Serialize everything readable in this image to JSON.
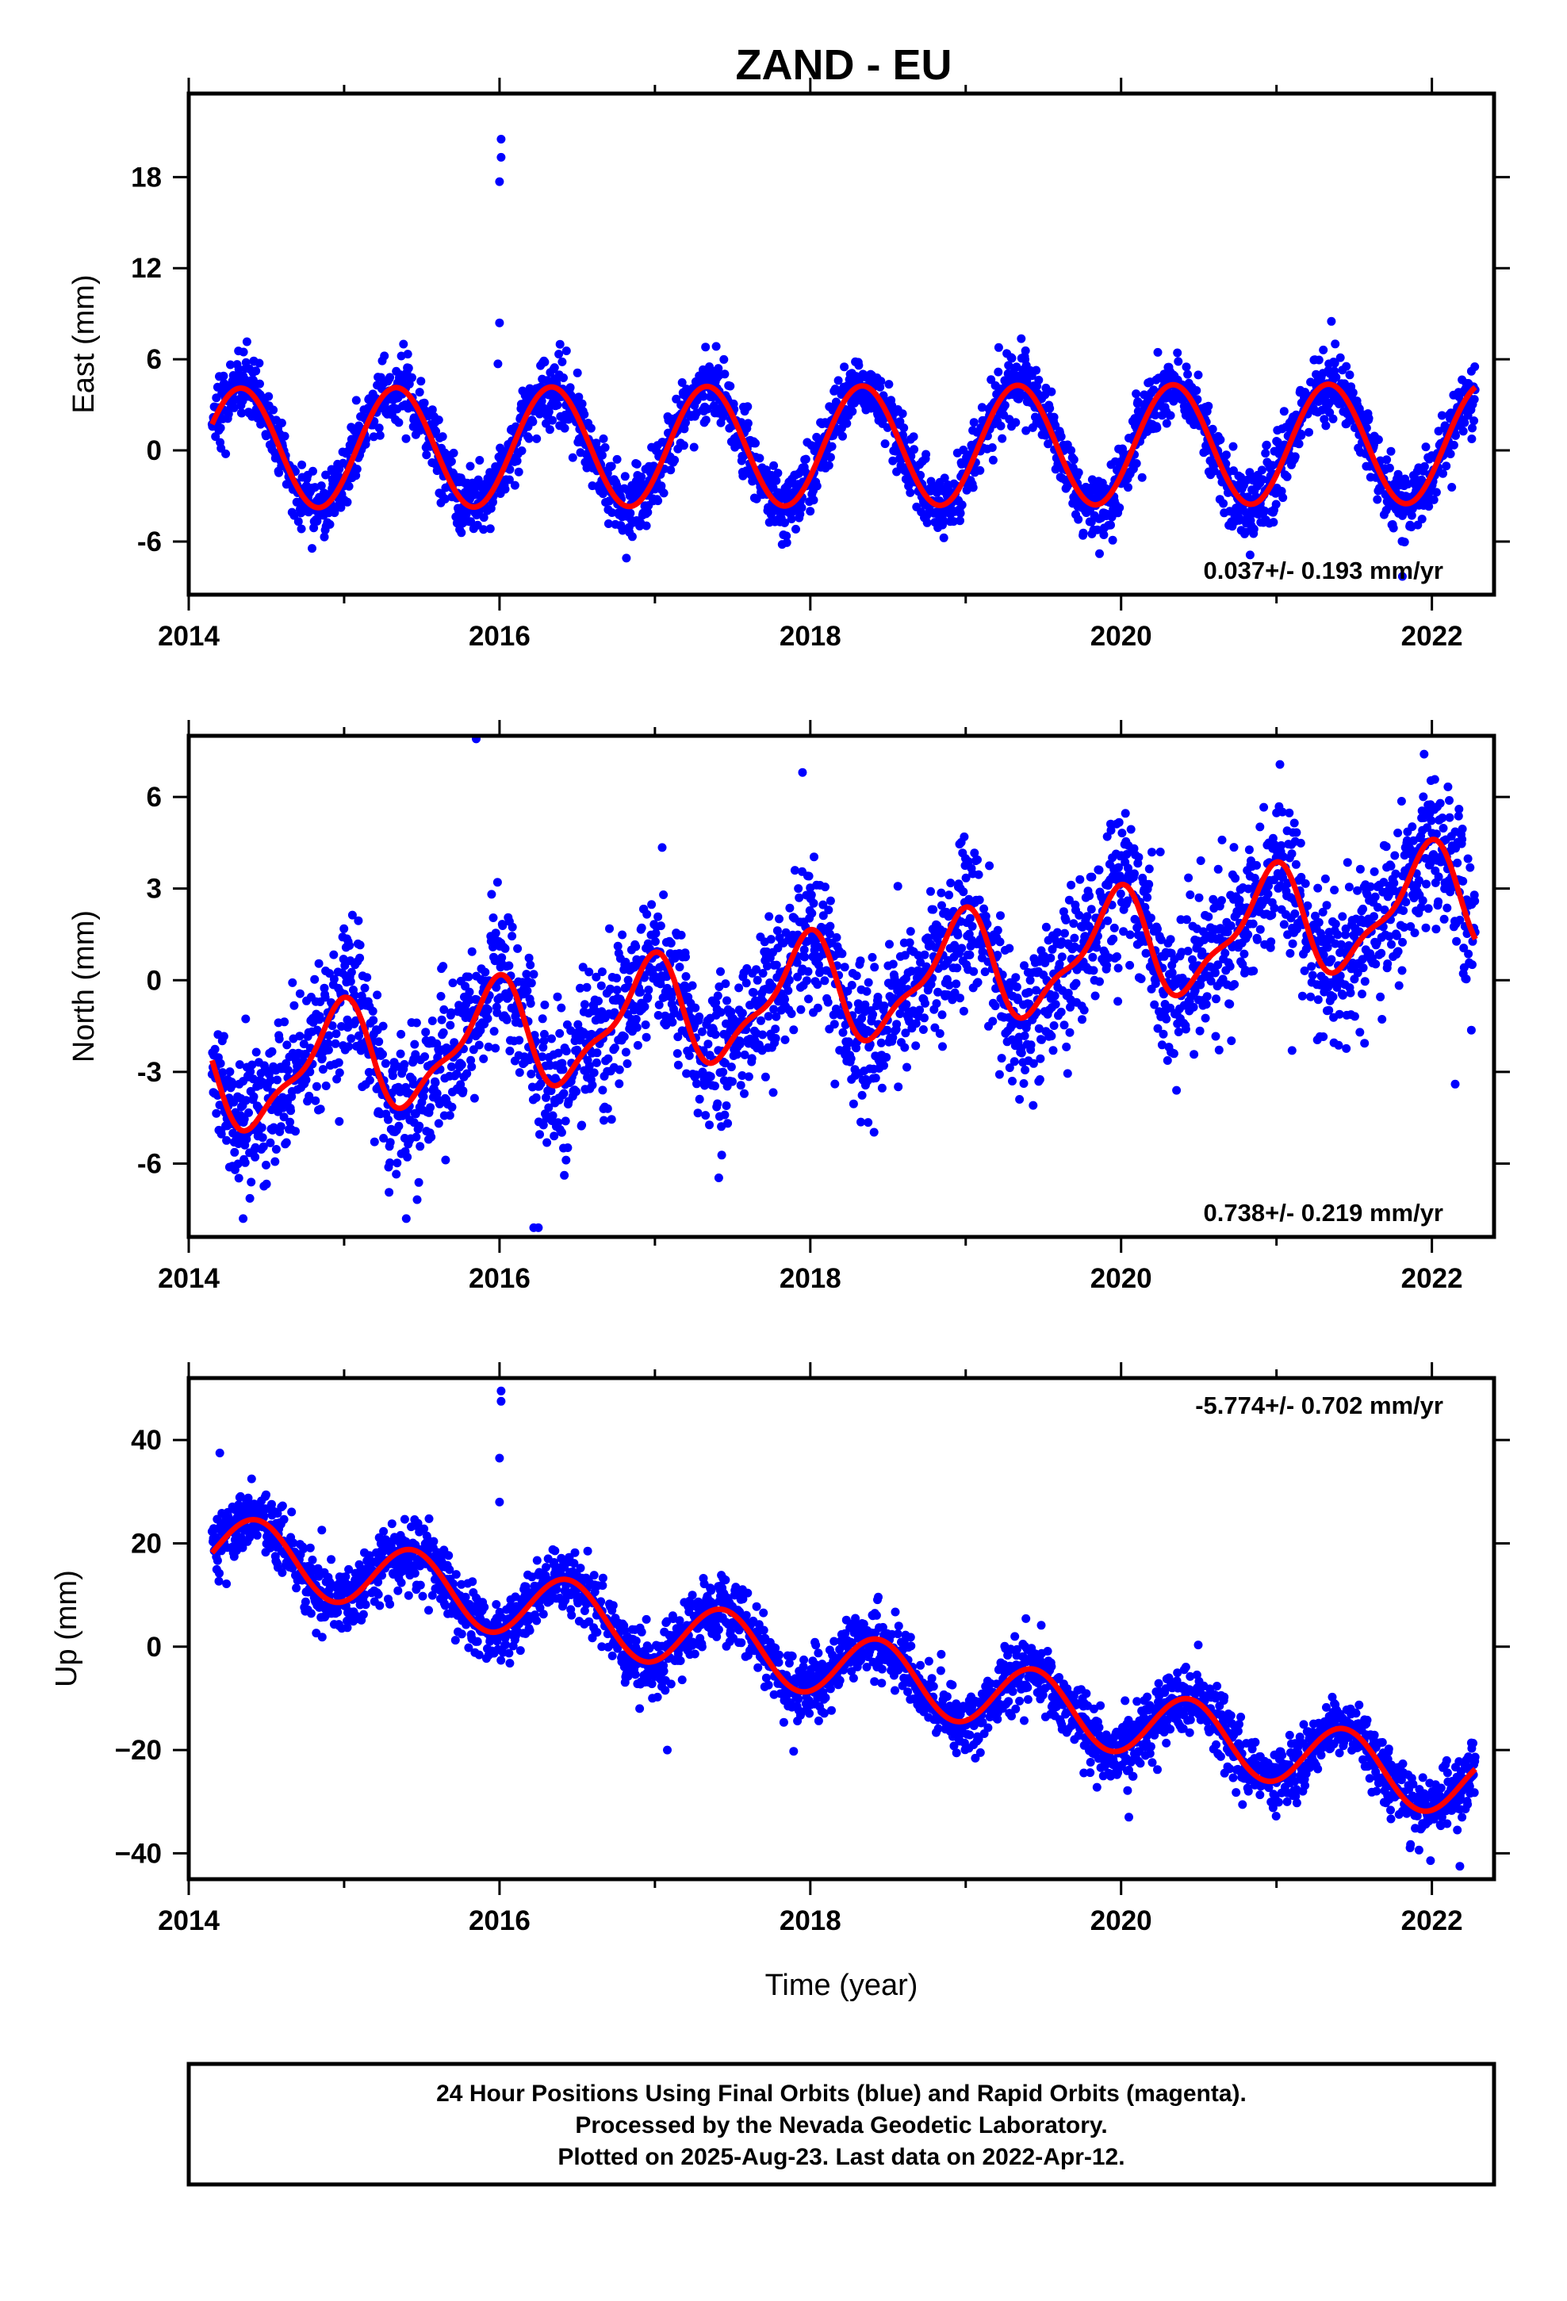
{
  "title": "ZAND - EU",
  "colors": {
    "final_orbits": "#0000ff",
    "rapid_orbits": "#ff00ff",
    "model_fit": "#ff0000",
    "frame": "#000000"
  },
  "footer": {
    "line1": "24 Hour Positions Using Final Orbits (blue) and Rapid Orbits (magenta).",
    "line2": "Processed by the Nevada Geodetic Laboratory.",
    "line3": "Plotted on 2025-Aug-23. Last data on 2022-Apr-12."
  },
  "chart_data": [
    {
      "type": "scatter",
      "id": "east",
      "ylabel": "East (mm)",
      "xlabel": "",
      "xlim": [
        2014.0,
        2022.4
      ],
      "ylim": [
        -9.5,
        23.5
      ],
      "xticks": [
        2014,
        2016,
        2018,
        2020,
        2022
      ],
      "yticks": [
        -6,
        0,
        6,
        12,
        18
      ],
      "ytick_labels": [
        "-6",
        "0",
        "6",
        "12",
        "18"
      ],
      "rate": "0.037+/- 0.193 mm/yr",
      "rate_position": "bottom-right",
      "grid": false,
      "data_range": [
        2014.15,
        2022.28
      ],
      "model": {
        "annual_sin": 3.4,
        "annual_cos": -2.0,
        "semi_sin": 0.0,
        "semi_cos": 0.0,
        "offset": 0.3,
        "trend": 0.037,
        "spread": 1.1,
        "ref_epoch": 2018.2
      },
      "outliers": [
        [
          2016.01,
          20.5
        ],
        [
          2016.01,
          19.3
        ],
        [
          2016.0,
          17.7
        ],
        [
          2016.0,
          8.4
        ],
        [
          2015.99,
          5.7
        ],
        [
          2021.81,
          -8.3
        ]
      ],
      "series": [
        {
          "name": "Final Orbits",
          "color": "#0000ff"
        },
        {
          "name": "Model fit",
          "color": "#ff0000"
        }
      ]
    },
    {
      "type": "scatter",
      "id": "north",
      "ylabel": "North (mm)",
      "xlabel": "",
      "xlim": [
        2014.0,
        2022.4
      ],
      "ylim": [
        -8.4,
        8.0
      ],
      "xticks": [
        2014,
        2016,
        2018,
        2020,
        2022
      ],
      "yticks": [
        -6,
        -3,
        0,
        3,
        6
      ],
      "ytick_labels": [
        "-6",
        "-3",
        "0",
        "3",
        "6"
      ],
      "rate": "0.738+/- 0.219 mm/yr",
      "rate_position": "bottom-right",
      "grid": false,
      "data_range": [
        2014.15,
        2022.28
      ],
      "model": {
        "annual_sin": -0.5,
        "annual_cos": 1.6,
        "semi_sin": 0.3,
        "semi_cos": 0.5,
        "offset": -0.3,
        "trend": 0.738,
        "spread": 1.2,
        "ref_epoch": 2018.2
      },
      "outliers": [
        [
          2015.85,
          7.9
        ],
        [
          2017.95,
          6.8
        ],
        [
          2021.95,
          7.4
        ],
        [
          2016.22,
          -8.1
        ],
        [
          2016.25,
          -8.1
        ],
        [
          2014.35,
          -7.8
        ],
        [
          2015.4,
          -7.8
        ],
        [
          2022.15,
          -3.4
        ],
        [
          2021.1,
          -2.3
        ],
        [
          2019.3,
          -3.3
        ]
      ],
      "series": [
        {
          "name": "Final Orbits",
          "color": "#0000ff"
        },
        {
          "name": "Model fit",
          "color": "#ff0000"
        }
      ]
    },
    {
      "type": "scatter",
      "id": "up",
      "ylabel": "Up (mm)",
      "xlabel": "Time (year)",
      "xlim": [
        2014.0,
        2022.4
      ],
      "ylim": [
        -45,
        52
      ],
      "xticks": [
        2014,
        2016,
        2018,
        2020,
        2022
      ],
      "yticks": [
        -40,
        -20,
        0,
        20,
        40
      ],
      "ytick_labels": [
        "−40",
        "−20",
        "0",
        "20",
        "40"
      ],
      "rate": "-5.774+/- 0.702 mm/yr",
      "rate_position": "top-right",
      "grid": false,
      "data_range": [
        2014.15,
        2022.28
      ],
      "model": {
        "annual_sin": 2.5,
        "annual_cos": -6.0,
        "semi_sin": 0.0,
        "semi_cos": 0.0,
        "offset": -3.7,
        "trend": -5.774,
        "spread": 3.2,
        "ref_epoch": 2018.2
      },
      "outliers": [
        [
          2016.01,
          49.5
        ],
        [
          2016.01,
          47.5
        ],
        [
          2016.0,
          36.5
        ],
        [
          2016.0,
          28.0
        ],
        [
          2014.2,
          37.5
        ],
        [
          2017.08,
          -20.0
        ],
        [
          2020.05,
          -33.0
        ],
        [
          2022.18,
          -42.5
        ]
      ],
      "series": [
        {
          "name": "Final Orbits",
          "color": "#0000ff"
        },
        {
          "name": "Model fit",
          "color": "#ff0000"
        }
      ]
    }
  ]
}
